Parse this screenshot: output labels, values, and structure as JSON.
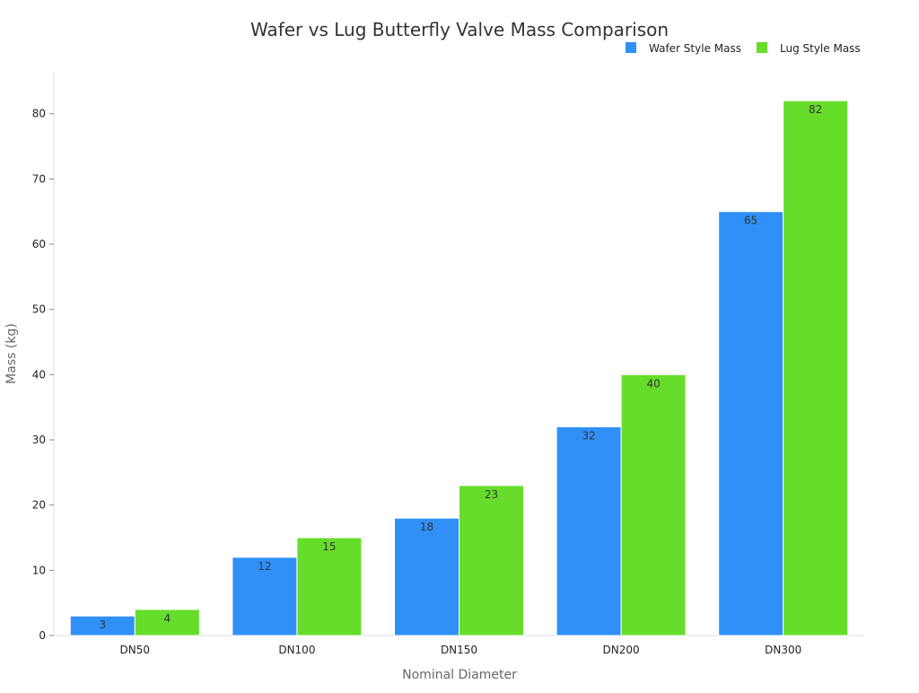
{
  "chart_data": {
    "type": "bar",
    "title": "Wafer vs Lug Butterfly Valve Mass Comparison",
    "xlabel": "Nominal Diameter",
    "ylabel": "Mass (kg)",
    "categories": [
      "DN50",
      "DN100",
      "DN150",
      "DN200",
      "DN300"
    ],
    "series": [
      {
        "name": "Wafer Style Mass",
        "color": "#3090f8",
        "values": [
          3,
          12,
          18,
          32,
          65
        ]
      },
      {
        "name": "Lug Style Mass",
        "color": "#66dd2a",
        "values": [
          4,
          15,
          23,
          40,
          82
        ]
      }
    ],
    "ylim": [
      0,
      85
    ],
    "yticks": [
      0,
      10,
      20,
      30,
      40,
      50,
      60,
      70,
      80
    ],
    "grid": false,
    "legend_position": "top-right",
    "data_labels": true
  }
}
